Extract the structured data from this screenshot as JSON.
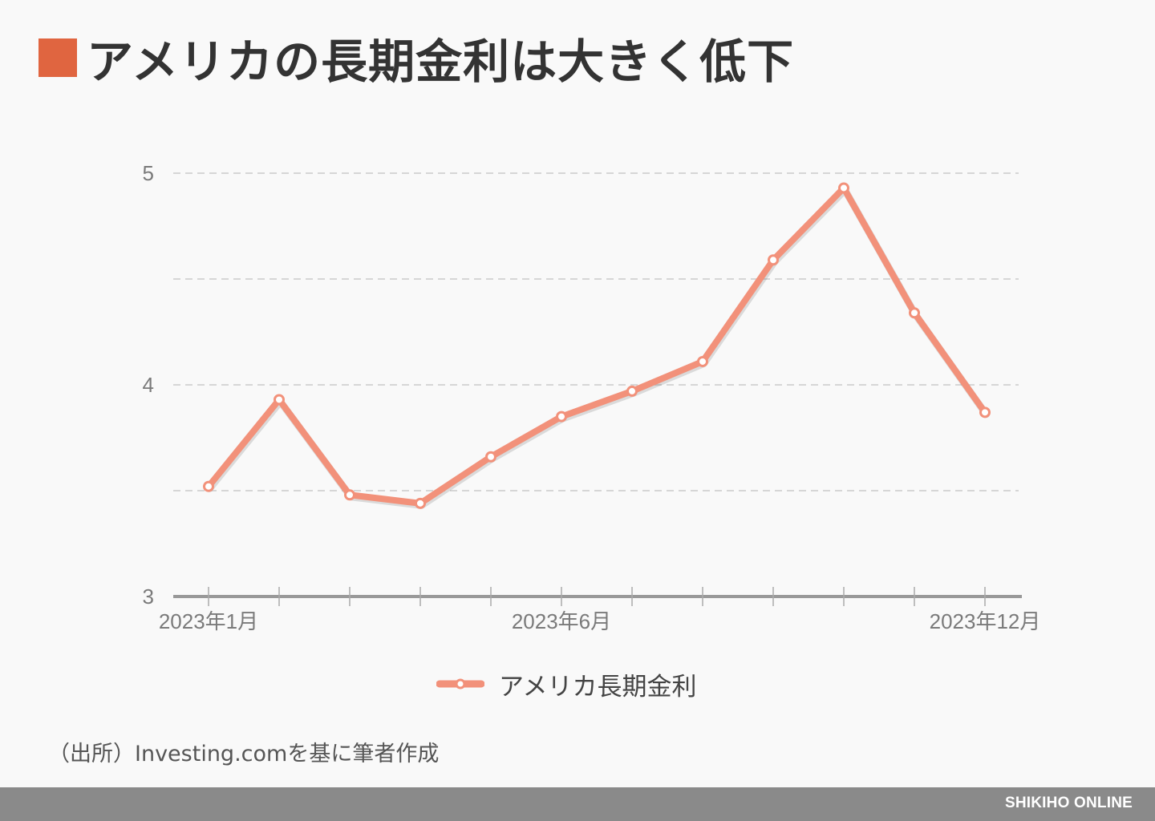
{
  "title": {
    "text": "アメリカの長期金利は大きく低下",
    "marker_color": "#e06540"
  },
  "chart_data": {
    "type": "line",
    "x": [
      "2023-01",
      "2023-02",
      "2023-03",
      "2023-04",
      "2023-05",
      "2023-06",
      "2023-07",
      "2023-08",
      "2023-09",
      "2023-10",
      "2023-11",
      "2023-12"
    ],
    "x_tick_labels": [
      {
        "index": 0,
        "label": "2023年1月"
      },
      {
        "index": 5,
        "label": "2023年6月"
      },
      {
        "index": 11,
        "label": "2023年12月"
      }
    ],
    "series": [
      {
        "name": "アメリカ長期金利",
        "color": "#f2917a",
        "values": [
          3.52,
          3.93,
          3.48,
          3.44,
          3.66,
          3.85,
          3.97,
          4.11,
          4.59,
          4.93,
          4.34,
          3.87
        ]
      }
    ],
    "ylim": [
      3,
      5
    ],
    "y_ticks": [
      3,
      4,
      5
    ],
    "y_gridlines": [
      3.5,
      4,
      4.5,
      5
    ],
    "grid": true,
    "legend_position": "bottom-center",
    "xlabel": "",
    "ylabel": ""
  },
  "legend": {
    "label": "アメリカ長期金利"
  },
  "source": "（出所）Investing.comを基に筆者作成",
  "footer": {
    "brand": "SHIKIHO ONLINE",
    "bar_color": "#8a8a8a"
  }
}
